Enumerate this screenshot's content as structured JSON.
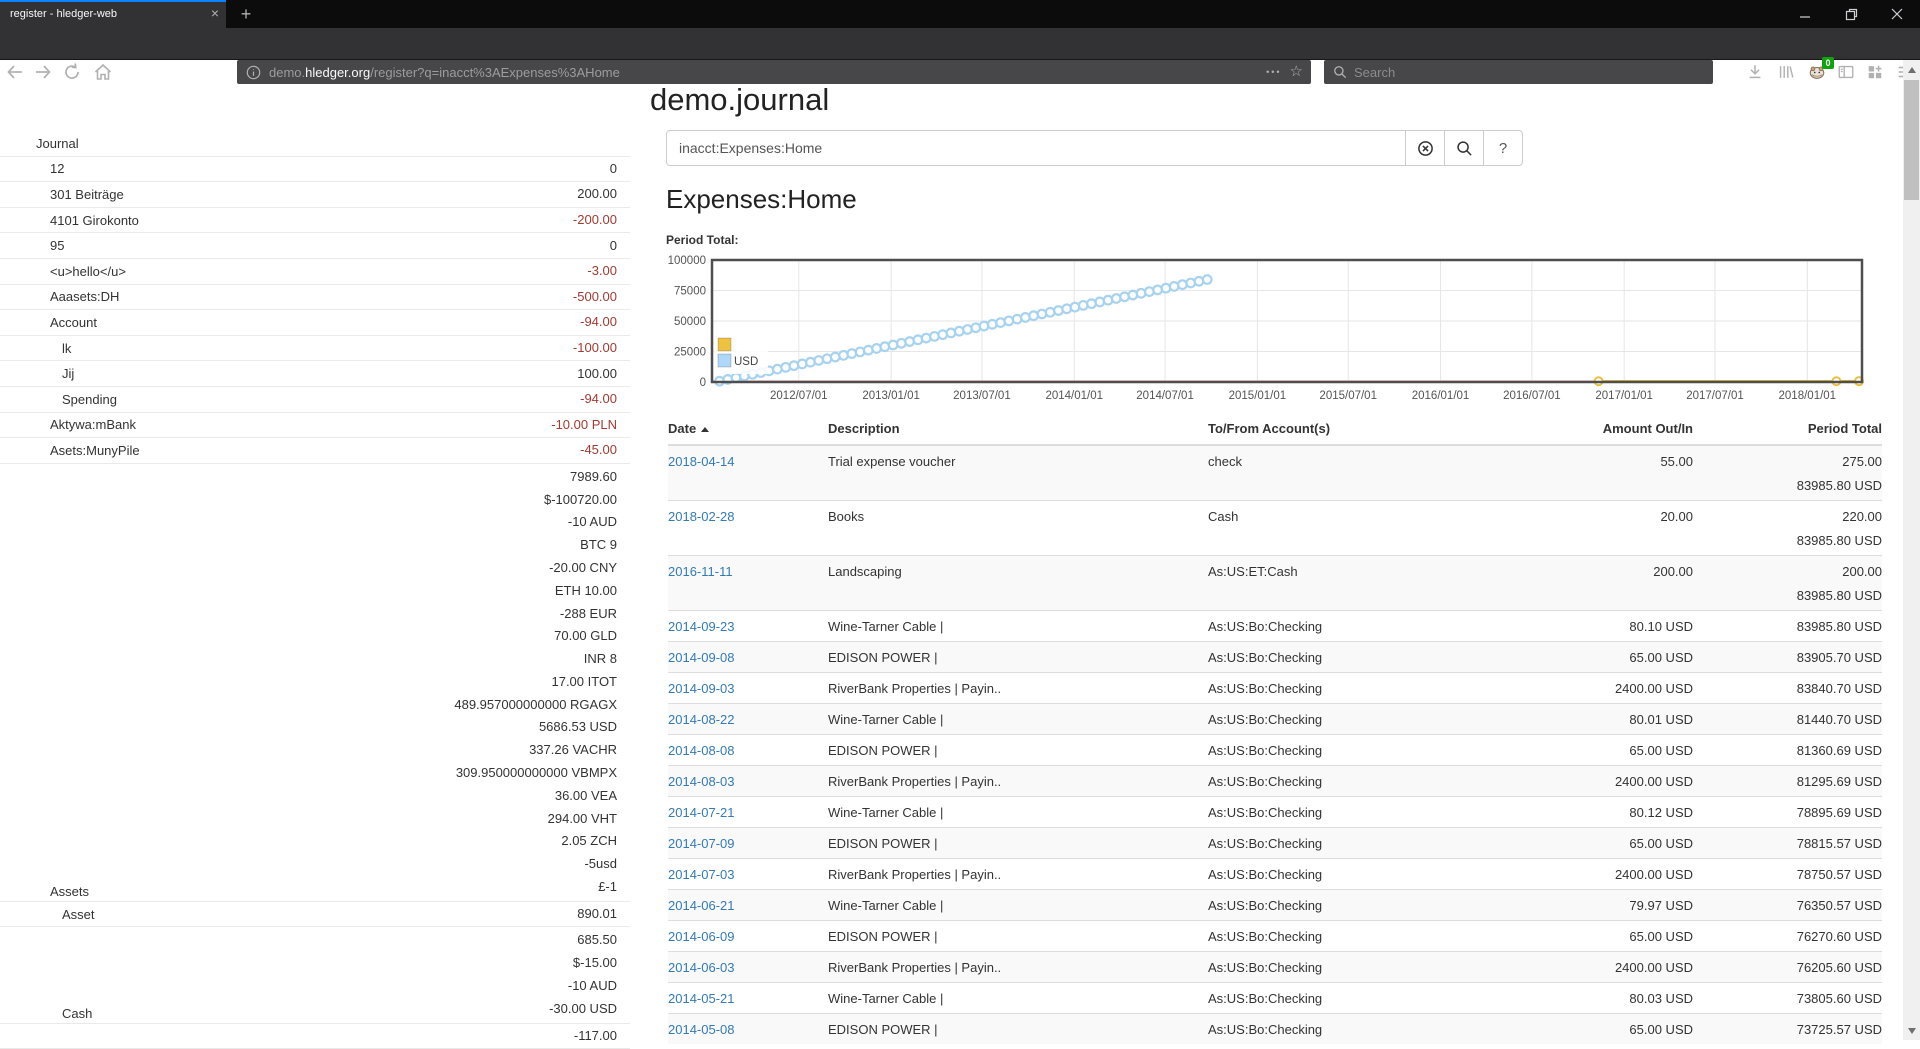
{
  "browser": {
    "tab": {
      "title": "register - hledger-web",
      "close_glyph": "×",
      "new_tab_glyph": "+"
    },
    "url": {
      "prefix": "demo.",
      "domain": "hledger.org",
      "path": "/register?q=inacct%3AExpenses%3AHome"
    },
    "url_dots_glyph": "•••",
    "url_star_glyph": "☆",
    "search_placeholder": "Search",
    "extension_badge": "0"
  },
  "page": {
    "title": "demo.journal",
    "query": "inacct:Expenses:Home",
    "help_button_label": "?",
    "account_title": "Expenses:Home",
    "chart_label": "Period Total:"
  },
  "sidebar": {
    "accounts": [
      {
        "name": "Journal",
        "indent": 0,
        "lines": []
      },
      {
        "name": "12",
        "indent": 1,
        "lines": [
          {
            "t": "0",
            "neg": false
          }
        ]
      },
      {
        "name": "301 Beiträge",
        "indent": 1,
        "lines": [
          {
            "t": "200.00",
            "neg": false
          }
        ]
      },
      {
        "name": "4101 Girokonto",
        "indent": 1,
        "lines": [
          {
            "t": "-200.00",
            "neg": true
          }
        ]
      },
      {
        "name": "95",
        "indent": 1,
        "lines": [
          {
            "t": "0",
            "neg": false
          }
        ]
      },
      {
        "name": "<u>hello</u>",
        "indent": 1,
        "lines": [
          {
            "t": "-3.00",
            "neg": true
          }
        ]
      },
      {
        "name": "Aaasets:DH",
        "indent": 1,
        "lines": [
          {
            "t": "-500.00",
            "neg": true
          }
        ]
      },
      {
        "name": "Account",
        "indent": 1,
        "lines": [
          {
            "t": "-94.00",
            "neg": true
          }
        ]
      },
      {
        "name": "lk",
        "indent": 2,
        "lines": [
          {
            "t": "-100.00",
            "neg": true
          }
        ]
      },
      {
        "name": "Jij",
        "indent": 2,
        "lines": [
          {
            "t": "100.00",
            "neg": false
          }
        ]
      },
      {
        "name": "Spending",
        "indent": 2,
        "lines": [
          {
            "t": "-94.00",
            "neg": true
          }
        ]
      },
      {
        "name": "Aktywa:mBank",
        "indent": 1,
        "lines": [
          {
            "t": "-10.00 PLN",
            "neg": true
          }
        ]
      },
      {
        "name": "Asets:MunyPile",
        "indent": 1,
        "lines": [
          {
            "t": "-45.00",
            "neg": true
          }
        ]
      },
      {
        "name": "Assets",
        "indent": 1,
        "lines": [
          {
            "t": "7989.60",
            "neg": false
          },
          {
            "t": "$-100720.00",
            "neg": false
          },
          {
            "t": "-10 AUD",
            "neg": false
          },
          {
            "t": "BTC 9",
            "neg": false
          },
          {
            "t": "-20.00 CNY",
            "neg": false
          },
          {
            "t": "ETH 10.00",
            "neg": false
          },
          {
            "t": "-288 EUR",
            "neg": false
          },
          {
            "t": "70.00 GLD",
            "neg": false
          },
          {
            "t": "INR 8",
            "neg": false
          },
          {
            "t": "17.00 ITOT",
            "neg": false
          },
          {
            "t": "489.957000000000 RGAGX",
            "neg": false
          },
          {
            "t": "5686.53 USD",
            "neg": false
          },
          {
            "t": "337.26 VACHR",
            "neg": false
          },
          {
            "t": "309.950000000000 VBMPX",
            "neg": false
          },
          {
            "t": "36.00 VEA",
            "neg": false
          },
          {
            "t": "294.00 VHT",
            "neg": false
          },
          {
            "t": "2.05 ZCH",
            "neg": false
          },
          {
            "t": "-5usd",
            "neg": false
          },
          {
            "t": "£-1",
            "neg": false
          }
        ]
      },
      {
        "name": "Asset",
        "indent": 2,
        "lines": [
          {
            "t": "890.01",
            "neg": false
          }
        ]
      },
      {
        "name": "Cash",
        "indent": 2,
        "lines": [
          {
            "t": "685.50",
            "neg": false
          },
          {
            "t": "$-15.00",
            "neg": false
          },
          {
            "t": "-10 AUD",
            "neg": false
          },
          {
            "t": "-30.00 USD",
            "neg": false
          }
        ]
      },
      {
        "name": "",
        "indent": 2,
        "lines": [
          {
            "t": "-117.00",
            "neg": false
          }
        ]
      }
    ]
  },
  "register": {
    "columns": [
      "Date",
      "Description",
      "To/From Account(s)",
      "Amount Out/In",
      "Period Total"
    ],
    "rows": [
      {
        "date": "2018-04-14",
        "description": "Trial expense voucher",
        "account": "check",
        "amount": "55.00",
        "totals": [
          "275.00",
          "83985.80 USD"
        ]
      },
      {
        "date": "2018-02-28",
        "description": "Books",
        "account": "Cash",
        "amount": "20.00",
        "totals": [
          "220.00",
          "83985.80 USD"
        ]
      },
      {
        "date": "2016-11-11",
        "description": "Landscaping",
        "account": "As:US:ET:Cash",
        "amount": "200.00",
        "totals": [
          "200.00",
          "83985.80 USD"
        ]
      },
      {
        "date": "2014-09-23",
        "description": "Wine-Tarner Cable |",
        "account": "As:US:Bo:Checking",
        "amount": "80.10 USD",
        "totals": [
          "83985.80 USD"
        ]
      },
      {
        "date": "2014-09-08",
        "description": "EDISON POWER |",
        "account": "As:US:Bo:Checking",
        "amount": "65.00 USD",
        "totals": [
          "83905.70 USD"
        ]
      },
      {
        "date": "2014-09-03",
        "description": "RiverBank Properties | Payin..",
        "account": "As:US:Bo:Checking",
        "amount": "2400.00 USD",
        "totals": [
          "83840.70 USD"
        ]
      },
      {
        "date": "2014-08-22",
        "description": "Wine-Tarner Cable |",
        "account": "As:US:Bo:Checking",
        "amount": "80.01 USD",
        "totals": [
          "81440.70 USD"
        ]
      },
      {
        "date": "2014-08-08",
        "description": "EDISON POWER |",
        "account": "As:US:Bo:Checking",
        "amount": "65.00 USD",
        "totals": [
          "81360.69 USD"
        ]
      },
      {
        "date": "2014-08-03",
        "description": "RiverBank Properties | Payin..",
        "account": "As:US:Bo:Checking",
        "amount": "2400.00 USD",
        "totals": [
          "81295.69 USD"
        ]
      },
      {
        "date": "2014-07-21",
        "description": "Wine-Tarner Cable |",
        "account": "As:US:Bo:Checking",
        "amount": "80.12 USD",
        "totals": [
          "78895.69 USD"
        ]
      },
      {
        "date": "2014-07-09",
        "description": "EDISON POWER |",
        "account": "As:US:Bo:Checking",
        "amount": "65.00 USD",
        "totals": [
          "78815.57 USD"
        ]
      },
      {
        "date": "2014-07-03",
        "description": "RiverBank Properties | Payin..",
        "account": "As:US:Bo:Checking",
        "amount": "2400.00 USD",
        "totals": [
          "78750.57 USD"
        ]
      },
      {
        "date": "2014-06-21",
        "description": "Wine-Tarner Cable |",
        "account": "As:US:Bo:Checking",
        "amount": "79.97 USD",
        "totals": [
          "76350.57 USD"
        ]
      },
      {
        "date": "2014-06-09",
        "description": "EDISON POWER |",
        "account": "As:US:Bo:Checking",
        "amount": "65.00 USD",
        "totals": [
          "76270.60 USD"
        ]
      },
      {
        "date": "2014-06-03",
        "description": "RiverBank Properties | Payin..",
        "account": "As:US:Bo:Checking",
        "amount": "2400.00 USD",
        "totals": [
          "76205.60 USD"
        ]
      },
      {
        "date": "2014-05-21",
        "description": "Wine-Tarner Cable |",
        "account": "As:US:Bo:Checking",
        "amount": "80.03 USD",
        "totals": [
          "73805.60 USD"
        ]
      },
      {
        "date": "2014-05-08",
        "description": "EDISON POWER |",
        "account": "As:US:Bo:Checking",
        "amount": "65.00 USD",
        "totals": [
          "73725.57 USD"
        ]
      }
    ]
  },
  "chart_data": {
    "type": "line",
    "title": "Period Total:",
    "x_domain": [
      "2012-01-10",
      "2018-04-20"
    ],
    "ylim": [
      0,
      100000
    ],
    "y_ticks": [
      0,
      25000,
      50000,
      75000,
      100000
    ],
    "x_ticks": [
      {
        "date": "2012-07-01",
        "label": "2012/07/01"
      },
      {
        "date": "2013-01-01",
        "label": "2013/01/01"
      },
      {
        "date": "2013-07-01",
        "label": "2013/07/01"
      },
      {
        "date": "2014-01-01",
        "label": "2014/01/01"
      },
      {
        "date": "2014-07-01",
        "label": "2014/07/01"
      },
      {
        "date": "2015-01-01",
        "label": "2015/01/01"
      },
      {
        "date": "2015-07-01",
        "label": "2015/07/01"
      },
      {
        "date": "2016-01-01",
        "label": "2016/01/01"
      },
      {
        "date": "2016-07-01",
        "label": "2016/07/01"
      },
      {
        "date": "2017-01-01",
        "label": "2017/01/01"
      },
      {
        "date": "2017-07-01",
        "label": "2017/07/01"
      },
      {
        "date": "2018-01-01",
        "label": "2018/01/01"
      }
    ],
    "grid": true,
    "legend_position": "bottom-left-inside",
    "baseline_color": "#ffc2c2",
    "legend": [
      {
        "label": "",
        "color": "#edc240"
      },
      {
        "label": "USD",
        "color": "#afd8f8"
      }
    ],
    "series": [
      {
        "name": "",
        "type": "line-markers",
        "color": "#e7c13f",
        "points": [
          [
            "2016-11-11",
            200
          ],
          [
            "2018-02-28",
            220
          ],
          [
            "2018-04-14",
            275
          ]
        ]
      },
      {
        "name": "USD",
        "type": "points",
        "color": "#a7d2f0",
        "x_range": [
          "2012-01-25",
          "2014-09-23"
        ],
        "values": [
          700,
          2112,
          3523,
          4935,
          6346,
          7758,
          9169,
          10581,
          11992,
          13404,
          14815,
          16227,
          17638,
          19050,
          20461,
          21873,
          23284,
          24696,
          26107,
          27519,
          28930,
          30342,
          31753,
          33165,
          34576,
          35988,
          37399,
          38811,
          40222,
          41634,
          43045,
          44457,
          45868,
          47280,
          48691,
          50103,
          51514,
          52926,
          54337,
          55749,
          57160,
          58572,
          59983,
          61395,
          62806,
          64218,
          65629,
          67041,
          68452,
          69864,
          71275,
          72687,
          74098,
          75510,
          76921,
          78333,
          79744,
          81156,
          82567,
          83985.8
        ]
      }
    ]
  }
}
